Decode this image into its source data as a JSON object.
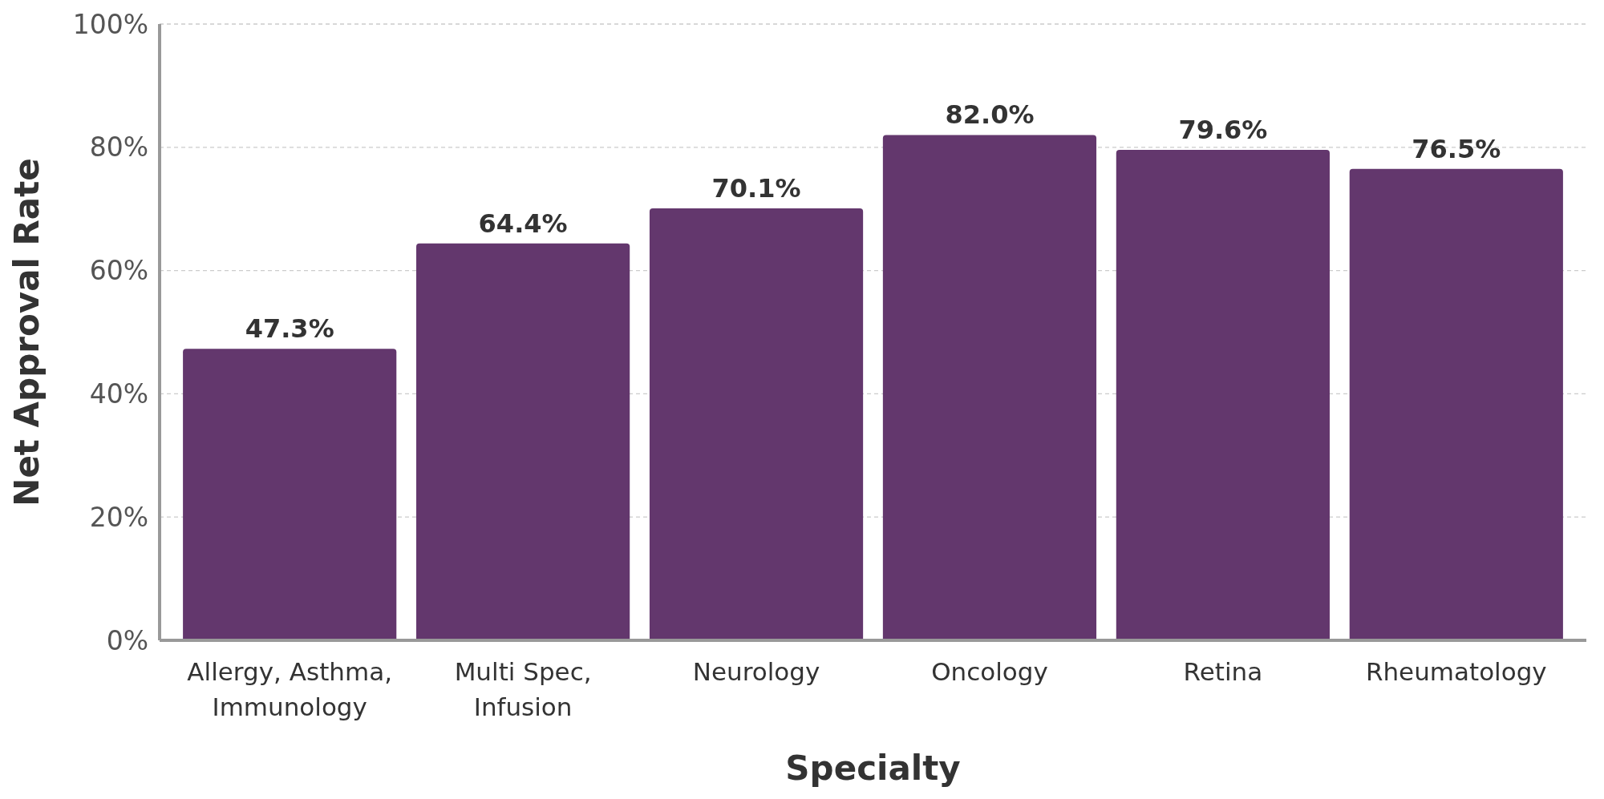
{
  "chart_data": {
    "type": "bar",
    "xlabel": "Specialty",
    "ylabel": "Net Approval Rate",
    "categories": [
      "Allergy, Asthma, Immunology",
      "Multi Spec, Infusion",
      "Neurology",
      "Oncology",
      "Retina",
      "Rheumatology"
    ],
    "values": [
      47.3,
      64.4,
      70.1,
      82.0,
      79.6,
      76.5
    ],
    "value_labels": [
      "47.3%",
      "64.4%",
      "70.1%",
      "82.0%",
      "79.6%",
      "76.5%"
    ],
    "color": "#63376d",
    "ylim": [
      0,
      100
    ],
    "yticks": [
      {
        "value": 0,
        "label": "0%"
      },
      {
        "value": 20,
        "label": "20%"
      },
      {
        "value": 40,
        "label": "40%"
      },
      {
        "value": 60,
        "label": "60%"
      },
      {
        "value": 80,
        "label": "80%"
      },
      {
        "value": 100,
        "label": "100%"
      }
    ],
    "grid": "y"
  }
}
